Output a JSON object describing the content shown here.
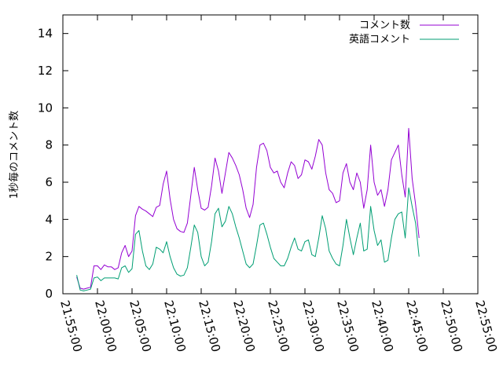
{
  "chart_data": {
    "type": "line",
    "title": "",
    "xlabel": "",
    "ylabel": "1秒毎のコメント数",
    "xlim": [
      "21:55:00",
      "22:55:00"
    ],
    "ylim": [
      0,
      15
    ],
    "grid": false,
    "legend_position": "top-right",
    "x_ticks": [
      "21:55:00",
      "22:00:00",
      "22:05:00",
      "22:10:00",
      "22:15:00",
      "22:20:00",
      "22:25:00",
      "22:30:00",
      "22:35:00",
      "22:40:00",
      "22:45:00",
      "22:50:00",
      "22:55:00"
    ],
    "y_ticks": [
      "0",
      "2",
      "4",
      "6",
      "8",
      "10",
      "12",
      "14"
    ],
    "series": [
      {
        "name": "コメント数",
        "color": "#9400d3",
        "points": [
          [
            "21:57:00",
            0.9
          ],
          [
            "21:57:30",
            0.3
          ],
          [
            "21:58:00",
            0.25
          ],
          [
            "21:58:30",
            0.3
          ],
          [
            "21:59:00",
            0.35
          ],
          [
            "21:59:30",
            1.5
          ],
          [
            "22:00:00",
            1.5
          ],
          [
            "22:00:30",
            1.3
          ],
          [
            "22:01:00",
            1.55
          ],
          [
            "22:01:30",
            1.45
          ],
          [
            "22:02:00",
            1.45
          ],
          [
            "22:02:30",
            1.3
          ],
          [
            "22:03:00",
            1.4
          ],
          [
            "22:03:30",
            2.2
          ],
          [
            "22:04:00",
            2.6
          ],
          [
            "22:04:30",
            2.0
          ],
          [
            "22:05:00",
            2.3
          ],
          [
            "22:05:30",
            4.2
          ],
          [
            "22:06:00",
            4.7
          ],
          [
            "22:06:30",
            4.55
          ],
          [
            "22:07:00",
            4.45
          ],
          [
            "22:07:30",
            4.3
          ],
          [
            "22:08:00",
            4.15
          ],
          [
            "22:08:30",
            4.65
          ],
          [
            "22:09:00",
            4.75
          ],
          [
            "22:09:30",
            5.9
          ],
          [
            "22:10:00",
            6.6
          ],
          [
            "22:10:30",
            5.1
          ],
          [
            "22:11:00",
            4.0
          ],
          [
            "22:11:30",
            3.5
          ],
          [
            "22:12:00",
            3.35
          ],
          [
            "22:12:30",
            3.3
          ],
          [
            "22:13:00",
            3.8
          ],
          [
            "22:13:30",
            5.3
          ],
          [
            "22:14:00",
            6.8
          ],
          [
            "22:14:30",
            5.6
          ],
          [
            "22:15:00",
            4.6
          ],
          [
            "22:15:30",
            4.5
          ],
          [
            "22:16:00",
            4.65
          ],
          [
            "22:16:30",
            5.8
          ],
          [
            "22:17:00",
            7.3
          ],
          [
            "22:17:30",
            6.6
          ],
          [
            "22:18:00",
            5.4
          ],
          [
            "22:18:30",
            6.5
          ],
          [
            "22:19:00",
            7.6
          ],
          [
            "22:19:30",
            7.3
          ],
          [
            "22:20:00",
            6.9
          ],
          [
            "22:20:30",
            6.4
          ],
          [
            "22:21:00",
            5.6
          ],
          [
            "22:21:30",
            4.6
          ],
          [
            "22:22:00",
            4.1
          ],
          [
            "22:22:30",
            4.8
          ],
          [
            "22:23:00",
            6.8
          ],
          [
            "22:23:30",
            8.0
          ],
          [
            "22:24:00",
            8.1
          ],
          [
            "22:24:30",
            7.7
          ],
          [
            "22:25:00",
            6.8
          ],
          [
            "22:25:30",
            6.5
          ],
          [
            "22:26:00",
            6.6
          ],
          [
            "22:26:30",
            6.0
          ],
          [
            "22:27:00",
            5.7
          ],
          [
            "22:27:30",
            6.5
          ],
          [
            "22:28:00",
            7.1
          ],
          [
            "22:28:30",
            6.9
          ],
          [
            "22:29:00",
            6.2
          ],
          [
            "22:29:30",
            6.4
          ],
          [
            "22:30:00",
            7.2
          ],
          [
            "22:30:30",
            7.1
          ],
          [
            "22:31:00",
            6.7
          ],
          [
            "22:31:30",
            7.4
          ],
          [
            "22:32:00",
            8.3
          ],
          [
            "22:32:30",
            8.0
          ],
          [
            "22:33:00",
            6.5
          ],
          [
            "22:33:30",
            5.6
          ],
          [
            "22:34:00",
            5.4
          ],
          [
            "22:34:30",
            4.9
          ],
          [
            "22:35:00",
            5.0
          ],
          [
            "22:35:30",
            6.5
          ],
          [
            "22:36:00",
            7.0
          ],
          [
            "22:36:30",
            6.0
          ],
          [
            "22:37:00",
            5.6
          ],
          [
            "22:37:30",
            6.5
          ],
          [
            "22:38:00",
            6.0
          ],
          [
            "22:38:30",
            4.6
          ],
          [
            "22:39:00",
            5.6
          ],
          [
            "22:39:30",
            8.0
          ],
          [
            "22:40:00",
            6.0
          ],
          [
            "22:40:30",
            5.3
          ],
          [
            "22:41:00",
            5.6
          ],
          [
            "22:41:30",
            4.7
          ],
          [
            "22:42:00",
            5.6
          ],
          [
            "22:42:30",
            7.2
          ],
          [
            "22:43:00",
            7.6
          ],
          [
            "22:43:30",
            8.0
          ],
          [
            "22:44:00",
            6.4
          ],
          [
            "22:44:30",
            5.2
          ],
          [
            "22:45:00",
            8.9
          ],
          [
            "22:45:30",
            6.2
          ],
          [
            "22:46:00",
            4.8
          ],
          [
            "22:46:30",
            3.0
          ]
        ]
      },
      {
        "name": "英語コメント",
        "color": "#009e73",
        "points": [
          [
            "21:57:00",
            1.0
          ],
          [
            "21:57:30",
            0.2
          ],
          [
            "21:58:00",
            0.15
          ],
          [
            "21:58:30",
            0.2
          ],
          [
            "21:59:00",
            0.25
          ],
          [
            "21:59:30",
            0.85
          ],
          [
            "22:00:00",
            0.9
          ],
          [
            "22:00:30",
            0.7
          ],
          [
            "22:01:00",
            0.85
          ],
          [
            "22:01:30",
            0.85
          ],
          [
            "22:02:00",
            0.85
          ],
          [
            "22:02:30",
            0.85
          ],
          [
            "22:03:00",
            0.8
          ],
          [
            "22:03:30",
            1.4
          ],
          [
            "22:04:00",
            1.5
          ],
          [
            "22:04:30",
            1.15
          ],
          [
            "22:05:00",
            1.35
          ],
          [
            "22:05:30",
            3.2
          ],
          [
            "22:06:00",
            3.4
          ],
          [
            "22:06:30",
            2.3
          ],
          [
            "22:07:00",
            1.5
          ],
          [
            "22:07:30",
            1.3
          ],
          [
            "22:08:00",
            1.6
          ],
          [
            "22:08:30",
            2.5
          ],
          [
            "22:09:00",
            2.4
          ],
          [
            "22:09:30",
            2.2
          ],
          [
            "22:10:00",
            2.8
          ],
          [
            "22:10:30",
            2.0
          ],
          [
            "22:11:00",
            1.4
          ],
          [
            "22:11:30",
            1.05
          ],
          [
            "22:12:00",
            0.95
          ],
          [
            "22:12:30",
            1.0
          ],
          [
            "22:13:00",
            1.4
          ],
          [
            "22:13:30",
            2.5
          ],
          [
            "22:14:00",
            3.7
          ],
          [
            "22:14:30",
            3.3
          ],
          [
            "22:15:00",
            2.0
          ],
          [
            "22:15:30",
            1.5
          ],
          [
            "22:16:00",
            1.7
          ],
          [
            "22:16:30",
            2.8
          ],
          [
            "22:17:00",
            4.3
          ],
          [
            "22:17:30",
            4.6
          ],
          [
            "22:18:00",
            3.6
          ],
          [
            "22:18:30",
            3.9
          ],
          [
            "22:19:00",
            4.7
          ],
          [
            "22:19:30",
            4.3
          ],
          [
            "22:20:00",
            3.6
          ],
          [
            "22:20:30",
            3.0
          ],
          [
            "22:21:00",
            2.3
          ],
          [
            "22:21:30",
            1.6
          ],
          [
            "22:22:00",
            1.4
          ],
          [
            "22:22:30",
            1.6
          ],
          [
            "22:23:00",
            2.6
          ],
          [
            "22:23:30",
            3.7
          ],
          [
            "22:24:00",
            3.8
          ],
          [
            "22:24:30",
            3.2
          ],
          [
            "22:25:00",
            2.5
          ],
          [
            "22:25:30",
            1.9
          ],
          [
            "22:26:00",
            1.7
          ],
          [
            "22:26:30",
            1.5
          ],
          [
            "22:27:00",
            1.5
          ],
          [
            "22:27:30",
            1.9
          ],
          [
            "22:28:00",
            2.5
          ],
          [
            "22:28:30",
            3.0
          ],
          [
            "22:29:00",
            2.4
          ],
          [
            "22:29:30",
            2.3
          ],
          [
            "22:30:00",
            2.8
          ],
          [
            "22:30:30",
            2.9
          ],
          [
            "22:31:00",
            2.1
          ],
          [
            "22:31:30",
            2.0
          ],
          [
            "22:32:00",
            3.0
          ],
          [
            "22:32:30",
            4.2
          ],
          [
            "22:33:00",
            3.5
          ],
          [
            "22:33:30",
            2.3
          ],
          [
            "22:34:00",
            1.9
          ],
          [
            "22:34:30",
            1.6
          ],
          [
            "22:35:00",
            1.5
          ],
          [
            "22:35:30",
            2.6
          ],
          [
            "22:36:00",
            4.0
          ],
          [
            "22:36:30",
            3.0
          ],
          [
            "22:37:00",
            2.1
          ],
          [
            "22:37:30",
            3.0
          ],
          [
            "22:38:00",
            3.8
          ],
          [
            "22:38:30",
            2.3
          ],
          [
            "22:39:00",
            2.4
          ],
          [
            "22:39:30",
            4.7
          ],
          [
            "22:40:00",
            3.4
          ],
          [
            "22:40:30",
            2.6
          ],
          [
            "22:41:00",
            2.9
          ],
          [
            "22:41:30",
            1.7
          ],
          [
            "22:42:00",
            1.8
          ],
          [
            "22:42:30",
            3.0
          ],
          [
            "22:43:00",
            4.0
          ],
          [
            "22:43:30",
            4.3
          ],
          [
            "22:44:00",
            4.4
          ],
          [
            "22:44:30",
            3.0
          ],
          [
            "22:45:00",
            5.7
          ],
          [
            "22:45:30",
            4.7
          ],
          [
            "22:46:00",
            3.8
          ],
          [
            "22:46:30",
            2.0
          ]
        ]
      }
    ]
  }
}
